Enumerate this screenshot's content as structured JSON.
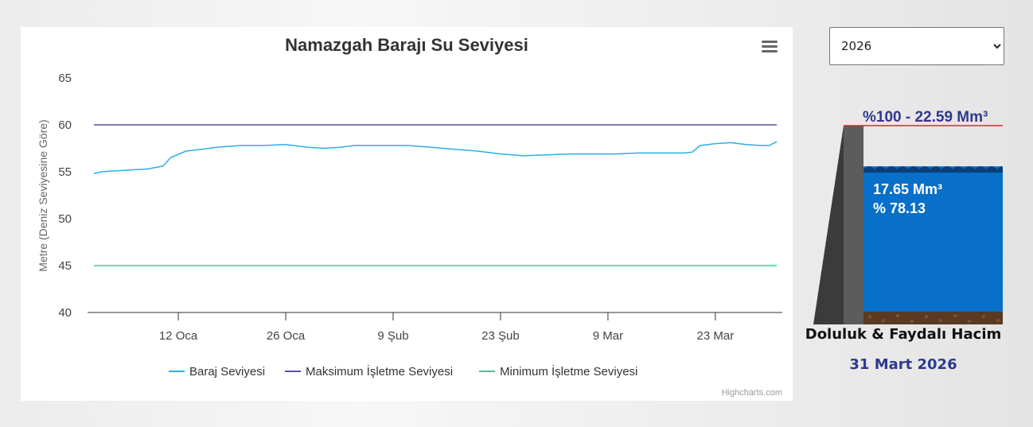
{
  "chart_data": {
    "type": "line",
    "title": "Namazgah Barajı Su Seviyesi",
    "ylabel": "Metre (Deniz Seviyesine Göre)",
    "xlabel": "",
    "ylim": [
      40,
      65
    ],
    "yticks": [
      40,
      45,
      50,
      55,
      60,
      65
    ],
    "xlim": [
      "2026-01-01",
      "2026-03-31"
    ],
    "xticks": [
      {
        "date": "2026-01-12",
        "label": "12 Oca"
      },
      {
        "date": "2026-01-26",
        "label": "26 Oca"
      },
      {
        "date": "2026-02-09",
        "label": "9 Şub"
      },
      {
        "date": "2026-02-23",
        "label": "23 Şub"
      },
      {
        "date": "2026-03-09",
        "label": "9 Mar"
      },
      {
        "date": "2026-03-23",
        "label": "23 Mar"
      }
    ],
    "legend_position": "bottom",
    "grid": false,
    "credit": "Highcharts.com",
    "series": [
      {
        "name": "Baraj Seviyesi",
        "color": "#2ab0e0",
        "points": [
          [
            "2026-01-01",
            54.8
          ],
          [
            "2026-01-02",
            55.0
          ],
          [
            "2026-01-04",
            55.1
          ],
          [
            "2026-01-06",
            55.2
          ],
          [
            "2026-01-08",
            55.3
          ],
          [
            "2026-01-10",
            55.6
          ],
          [
            "2026-01-11",
            56.5
          ],
          [
            "2026-01-13",
            57.2
          ],
          [
            "2026-01-15",
            57.4
          ],
          [
            "2026-01-17",
            57.6
          ],
          [
            "2026-01-20",
            57.8
          ],
          [
            "2026-01-23",
            57.8
          ],
          [
            "2026-01-26",
            57.9
          ],
          [
            "2026-01-29",
            57.6
          ],
          [
            "2026-01-31",
            57.5
          ],
          [
            "2026-02-02",
            57.6
          ],
          [
            "2026-02-04",
            57.8
          ],
          [
            "2026-02-07",
            57.8
          ],
          [
            "2026-02-09",
            57.8
          ],
          [
            "2026-02-11",
            57.8
          ],
          [
            "2026-02-14",
            57.6
          ],
          [
            "2026-02-17",
            57.4
          ],
          [
            "2026-02-20",
            57.2
          ],
          [
            "2026-02-23",
            56.9
          ],
          [
            "2026-02-26",
            56.7
          ],
          [
            "2026-03-01",
            56.8
          ],
          [
            "2026-03-04",
            56.9
          ],
          [
            "2026-03-07",
            56.9
          ],
          [
            "2026-03-10",
            56.9
          ],
          [
            "2026-03-13",
            57.0
          ],
          [
            "2026-03-16",
            57.0
          ],
          [
            "2026-03-19",
            57.0
          ],
          [
            "2026-03-20",
            57.1
          ],
          [
            "2026-03-21",
            57.8
          ],
          [
            "2026-03-23",
            58.0
          ],
          [
            "2026-03-25",
            58.1
          ],
          [
            "2026-03-27",
            57.9
          ],
          [
            "2026-03-29",
            57.8
          ],
          [
            "2026-03-30",
            57.8
          ],
          [
            "2026-03-31",
            58.2
          ]
        ]
      },
      {
        "name": "Maksimum İşletme Seviyesi",
        "color": "#5b4fa6",
        "points": [
          [
            "2026-01-01",
            60
          ],
          [
            "2026-03-31",
            60
          ]
        ]
      },
      {
        "name": "Minimum İşletme Seviyesi",
        "color": "#2bd19a",
        "points": [
          [
            "2026-01-01",
            45
          ],
          [
            "2026-03-31",
            45
          ]
        ]
      }
    ]
  },
  "year_select": {
    "value": "2026",
    "options": [
      "2026"
    ]
  },
  "reservoir": {
    "capacity_label": "%100 - 22.59 Mm³",
    "volume_label": "17.65 Mm³",
    "percent_label": "% 78.13",
    "fill_fraction": 0.7813,
    "water_color": "#0870c8",
    "dam_color": "#555555",
    "capacity_line_color": "#d62b2b",
    "caption": "Doluluk & Faydalı Hacim",
    "date": "31 Mart 2026"
  }
}
